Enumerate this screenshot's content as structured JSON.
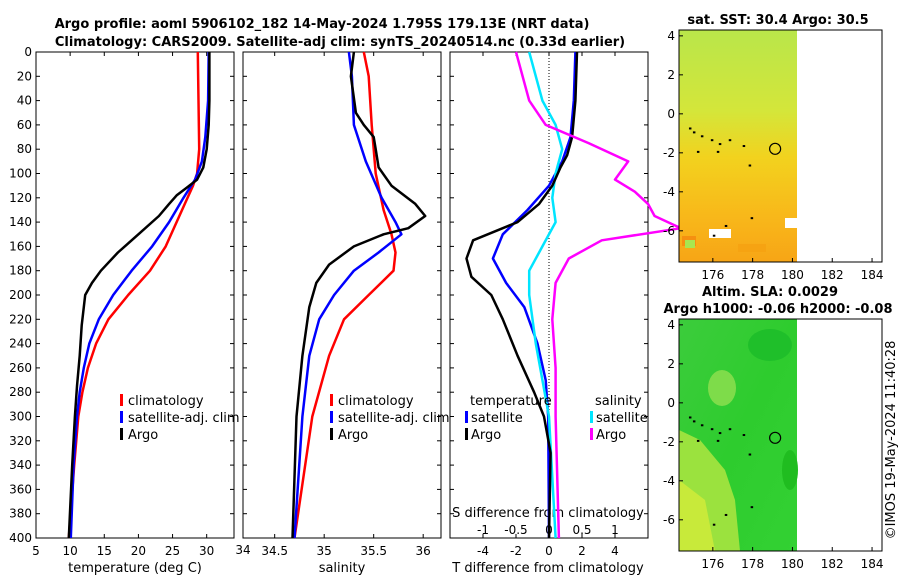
{
  "header": {
    "title_line1": "Argo profile: aoml 5906102_182 14-May-2024 1.795S 179.13E (NRT data)",
    "title_line2": "Climatology: CARS2009. Satellite-adj clim: synTS_20240514.nc (0.33d earlier)",
    "sst_title": "sat. SST: 30.4 Argo: 30.5",
    "sla_title1": "Altim. SLA: 0.0029",
    "sla_title2": "Argo h1000: -0.06 h2000: -0.08",
    "watermark": "©IMOS 19-May-2024 11:40:28"
  },
  "colors": {
    "climatology": "#ff0000",
    "satellite": "#0000ff",
    "argo": "#000000",
    "sat_diff_salinity": "#00e5ff",
    "argo_diff_salinity": "#ff00ff"
  },
  "legend": {
    "climatology": "climatology",
    "satellite_adj": "satellite-adj. clim",
    "argo": "Argo",
    "temperature_header": "temperature",
    "salinity_header": "salinity",
    "satellite": "satellite"
  },
  "chart_data": [
    {
      "type": "line",
      "id": "temperature",
      "xlabel": "temperature (deg C)",
      "ylabel": "",
      "xlim": [
        5,
        34
      ],
      "ylim": [
        400,
        0
      ],
      "xticks": [
        5,
        10,
        15,
        20,
        25,
        30
      ],
      "yticks": [
        0,
        20,
        40,
        60,
        80,
        100,
        120,
        140,
        160,
        180,
        200,
        220,
        240,
        260,
        280,
        300,
        320,
        340,
        360,
        380,
        400
      ],
      "series": [
        {
          "name": "climatology",
          "depth": [
            0,
            40,
            80,
            100,
            110,
            125,
            140,
            160,
            180,
            200,
            220,
            240,
            260,
            280,
            300,
            340,
            400
          ],
          "values": [
            28.7,
            28.8,
            28.9,
            28.6,
            28.0,
            26.8,
            25.6,
            24.0,
            21.7,
            18.5,
            15.6,
            13.8,
            12.6,
            11.8,
            11.2,
            10.6,
            9.8
          ]
        },
        {
          "name": "satellite",
          "depth": [
            0,
            40,
            70,
            90,
            105,
            120,
            140,
            160,
            180,
            200,
            220,
            240,
            260,
            280,
            300,
            340,
            400
          ],
          "values": [
            30.3,
            30.2,
            29.8,
            29.3,
            28.3,
            26.6,
            24.5,
            22.0,
            19.0,
            16.3,
            14.2,
            12.8,
            12.0,
            11.4,
            11.0,
            10.5,
            10.1
          ]
        },
        {
          "name": "Argo",
          "depth": [
            0,
            40,
            60,
            80,
            95,
            105,
            112,
            118,
            125,
            135,
            150,
            165,
            180,
            190,
            200,
            225,
            250,
            275,
            300,
            340,
            400
          ],
          "values": [
            30.4,
            30.4,
            30.3,
            30.0,
            29.5,
            28.6,
            27.0,
            25.6,
            24.5,
            23.0,
            20.0,
            17.0,
            14.5,
            13.2,
            12.2,
            11.7,
            11.4,
            11.0,
            10.7,
            10.3,
            9.8
          ]
        }
      ]
    },
    {
      "type": "line",
      "id": "salinity",
      "xlabel": "salinity",
      "ylabel": "",
      "xlim": [
        34.18,
        36.18
      ],
      "ylim": [
        400,
        0
      ],
      "xticks": [
        34.5,
        35,
        35.5,
        36
      ],
      "xtick_labels": [
        "34.5",
        "35",
        "35.5",
        "36"
      ],
      "left_edge_label": "34",
      "series": [
        {
          "name": "climatology",
          "depth": [
            0,
            20,
            60,
            100,
            130,
            150,
            165,
            180,
            200,
            220,
            250,
            300,
            400
          ],
          "values": [
            35.4,
            35.45,
            35.48,
            35.52,
            35.6,
            35.68,
            35.72,
            35.7,
            35.45,
            35.2,
            35.05,
            34.88,
            34.7
          ]
        },
        {
          "name": "satellite",
          "depth": [
            0,
            20,
            60,
            90,
            120,
            140,
            150,
            165,
            180,
            200,
            220,
            250,
            300,
            400
          ],
          "values": [
            35.25,
            35.28,
            35.3,
            35.42,
            35.58,
            35.72,
            35.78,
            35.55,
            35.3,
            35.1,
            34.95,
            34.85,
            34.78,
            34.7
          ]
        },
        {
          "name": "Argo",
          "depth": [
            0,
            20,
            50,
            60,
            70,
            80,
            95,
            110,
            125,
            135,
            145,
            150,
            160,
            175,
            190,
            210,
            250,
            300,
            400
          ],
          "values": [
            35.3,
            35.27,
            35.32,
            35.4,
            35.5,
            35.52,
            35.55,
            35.68,
            35.92,
            36.02,
            35.85,
            35.6,
            35.3,
            35.05,
            34.92,
            34.85,
            34.78,
            34.72,
            34.68
          ]
        }
      ]
    },
    {
      "type": "line",
      "id": "differences",
      "xlabel": "T difference from climatology",
      "xlabel_top": "S difference from climatology",
      "xlim": [
        -6,
        6
      ],
      "ylim": [
        400,
        0
      ],
      "xticks": [
        -4,
        -2,
        0,
        2,
        4
      ],
      "s_xticks": [
        -1,
        -0.5,
        0,
        0.5,
        1
      ],
      "s_scale": 4,
      "series": [
        {
          "name": "temperature satellite",
          "depth": [
            0,
            40,
            70,
            90,
            110,
            130,
            150,
            170,
            190,
            210,
            240,
            270,
            300,
            400
          ],
          "values": [
            1.6,
            1.5,
            1.3,
            0.8,
            0.0,
            -1.3,
            -2.8,
            -3.4,
            -2.6,
            -1.5,
            -0.7,
            -0.2,
            -0.05,
            0.0
          ]
        },
        {
          "name": "salinity satellite",
          "depth": [
            0,
            40,
            60,
            80,
            100,
            120,
            140,
            160,
            180,
            200,
            240,
            300,
            400
          ],
          "values": [
            -0.3,
            -0.1,
            0.1,
            0.2,
            0.1,
            0.05,
            0.1,
            -0.1,
            -0.3,
            -0.3,
            -0.2,
            0.0,
            0.1
          ]
        },
        {
          "name": "temperature Argo",
          "depth": [
            0,
            40,
            70,
            85,
            95,
            110,
            125,
            140,
            155,
            170,
            185,
            200,
            220,
            250,
            280,
            300,
            330,
            400
          ],
          "values": [
            1.7,
            1.6,
            1.4,
            1.1,
            0.7,
            0.2,
            -0.6,
            -1.9,
            -4.6,
            -5.0,
            -4.7,
            -3.5,
            -2.8,
            -1.9,
            -0.9,
            -0.3,
            0.1,
            0.0
          ]
        },
        {
          "name": "salinity Argo",
          "depth": [
            0,
            40,
            60,
            75,
            90,
            105,
            115,
            125,
            135,
            145,
            155,
            170,
            190,
            220,
            260,
            300,
            400
          ],
          "values": [
            -0.5,
            -0.3,
            -0.05,
            0.6,
            1.2,
            1.0,
            1.3,
            1.5,
            1.6,
            2.0,
            0.8,
            0.3,
            0.1,
            0.05,
            0.1,
            0.1,
            0.15
          ]
        }
      ]
    },
    {
      "type": "heatmap",
      "id": "sat-sst-map",
      "title": "sat. SST: 30.4 Argo: 30.5",
      "xlim": [
        174.3,
        184.5
      ],
      "ylim": [
        -7.6,
        4.3
      ],
      "xticks": [
        176,
        178,
        180,
        182,
        184
      ],
      "yticks": [
        -6,
        -4,
        -2,
        0,
        2,
        4
      ],
      "argo_position": [
        179.13,
        -1.795
      ]
    },
    {
      "type": "heatmap",
      "id": "altim-sla-map",
      "title": "Altim. SLA: 0.0029",
      "xlim": [
        174.3,
        184.5
      ],
      "ylim": [
        -7.6,
        4.3
      ],
      "xticks": [
        176,
        178,
        180,
        182,
        184
      ],
      "yticks": [
        -6,
        -4,
        -2,
        0,
        2,
        4
      ],
      "argo_position": [
        179.13,
        -1.795
      ]
    }
  ]
}
